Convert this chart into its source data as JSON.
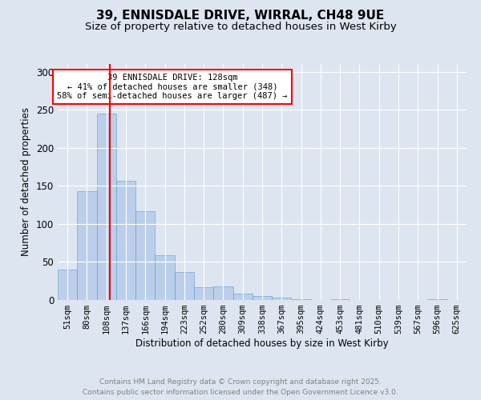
{
  "title_line1": "39, ENNISDALE DRIVE, WIRRAL, CH48 9UE",
  "title_line2": "Size of property relative to detached houses in West Kirby",
  "xlabel": "Distribution of detached houses by size in West Kirby",
  "ylabel": "Number of detached properties",
  "bin_labels": [
    "51sqm",
    "80sqm",
    "108sqm",
    "137sqm",
    "166sqm",
    "194sqm",
    "223sqm",
    "252sqm",
    "280sqm",
    "309sqm",
    "338sqm",
    "367sqm",
    "395sqm",
    "424sqm",
    "453sqm",
    "481sqm",
    "510sqm",
    "539sqm",
    "567sqm",
    "596sqm",
    "625sqm"
  ],
  "bar_values": [
    40,
    143,
    245,
    157,
    117,
    59,
    37,
    17,
    18,
    8,
    5,
    3,
    1,
    0,
    1,
    0,
    0,
    0,
    0,
    1,
    0
  ],
  "bar_color": "#aec6e8",
  "bar_edgecolor": "#5a9fd4",
  "bar_alpha": 0.7,
  "red_line_label": "39 ENNISDALE DRIVE: 128sqm",
  "annotation_line2": "← 41% of detached houses are smaller (348)",
  "annotation_line3": "58% of semi-detached houses are larger (487) →",
  "annotation_box_color": "white",
  "annotation_box_edgecolor": "red",
  "ylim": [
    0,
    310
  ],
  "yticks": [
    0,
    50,
    100,
    150,
    200,
    250,
    300
  ],
  "background_color": "#dde6f0",
  "plot_bg_color": "#dde6f0",
  "footer_line1": "Contains HM Land Registry data © Crown copyright and database right 2025.",
  "footer_line2": "Contains public sector information licensed under the Open Government Licence v3.0.",
  "title_fontsize": 11,
  "subtitle_fontsize": 9.5,
  "axis_label_fontsize": 8.5,
  "tick_fontsize": 7.5,
  "footer_fontsize": 6.5,
  "annotation_fontsize": 7.5
}
